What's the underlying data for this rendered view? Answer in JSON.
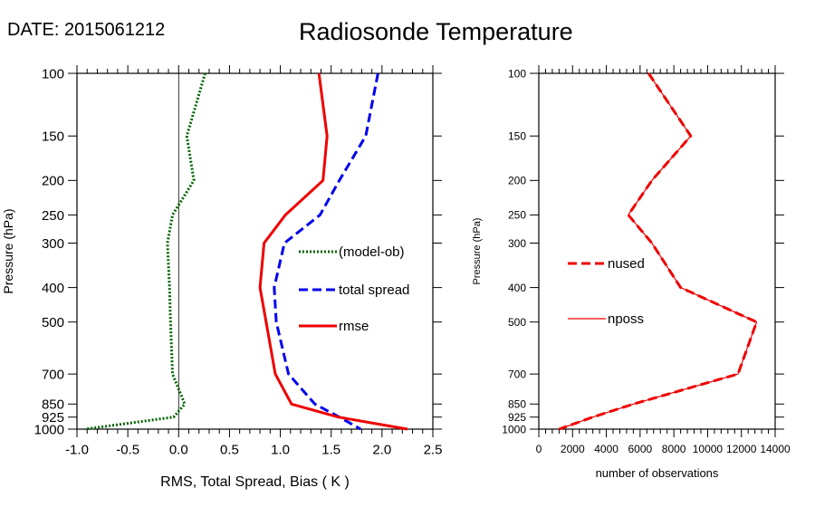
{
  "header": {
    "date_label": "DATE: 2015061212",
    "title": "Radiosonde Temperature"
  },
  "chart_data": [
    {
      "type": "line",
      "xlabel": "RMS, Total Spread, Bias ( K )",
      "ylabel": "Pressure (hPa)",
      "xlim": [
        -1.0,
        2.5
      ],
      "x_ticks": [
        "-1.0",
        "-0.5",
        "0.0",
        "0.5",
        "1.0",
        "1.5",
        "2.0",
        "2.5"
      ],
      "x_tick_values": [
        -1.0,
        -0.5,
        0.0,
        0.5,
        1.0,
        1.5,
        2.0,
        2.5
      ],
      "ylim": [
        1000,
        100
      ],
      "y_scale": "log",
      "y_ticks": [
        "100",
        "150",
        "200",
        "250",
        "300",
        "400",
        "500",
        "700",
        "850",
        "925",
        "1000"
      ],
      "y_tick_values": [
        100,
        150,
        200,
        250,
        300,
        400,
        500,
        700,
        850,
        925,
        1000
      ],
      "pressure_levels": [
        100,
        150,
        200,
        250,
        300,
        400,
        500,
        700,
        850,
        925,
        1000
      ],
      "series": [
        {
          "name": "(model-ob)",
          "color": "#006400",
          "dash": "dotted",
          "values": [
            0.26,
            0.08,
            0.15,
            -0.06,
            -0.11,
            -0.09,
            -0.08,
            -0.06,
            0.06,
            -0.05,
            -0.92
          ]
        },
        {
          "name": "total spread",
          "color": "#0000ee",
          "dash": "dashed",
          "values": [
            1.96,
            1.84,
            1.58,
            1.39,
            1.04,
            0.94,
            0.96,
            1.08,
            1.34,
            1.58,
            1.79
          ]
        },
        {
          "name": "rmse",
          "color": "#ee0000",
          "dash": "solid",
          "values": [
            1.38,
            1.46,
            1.42,
            1.05,
            0.84,
            0.8,
            0.86,
            0.95,
            1.11,
            1.57,
            2.25
          ]
        }
      ],
      "legend_position": "right-middle",
      "zero_line": true
    },
    {
      "type": "line",
      "xlabel": "number of observations",
      "ylabel": "Pressure (hPa)",
      "xlim": [
        0,
        14000
      ],
      "x_ticks": [
        "0",
        "2000",
        "4000",
        "6000",
        "8000",
        "10000",
        "12000",
        "14000"
      ],
      "x_tick_values": [
        0,
        2000,
        4000,
        6000,
        8000,
        10000,
        12000,
        14000
      ],
      "ylim": [
        1000,
        100
      ],
      "y_scale": "log",
      "y_ticks": [
        "100",
        "150",
        "200",
        "250",
        "300",
        "400",
        "500",
        "700",
        "850",
        "925",
        "1000"
      ],
      "y_tick_values": [
        100,
        150,
        200,
        250,
        300,
        400,
        500,
        700,
        850,
        925,
        1000
      ],
      "pressure_levels": [
        100,
        150,
        200,
        250,
        300,
        400,
        500,
        700,
        850,
        925,
        1000
      ],
      "series": [
        {
          "name": "nused",
          "color": "#ee0000",
          "dash": "dashed",
          "values": [
            6500,
            9000,
            6700,
            5300,
            6700,
            8400,
            12900,
            11800,
            5600,
            3200,
            1200
          ]
        },
        {
          "name": "nposs",
          "color": "#ee0000",
          "dash": "solid-thin",
          "values": [
            6500,
            9000,
            6700,
            5300,
            6700,
            8400,
            12900,
            11800,
            5600,
            3200,
            1200
          ]
        }
      ],
      "legend_position": "left-middle"
    }
  ]
}
